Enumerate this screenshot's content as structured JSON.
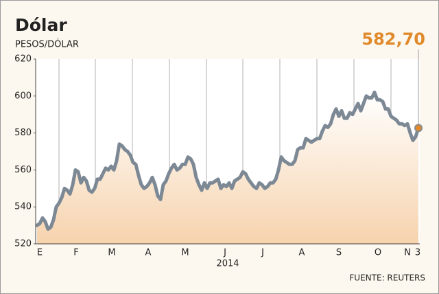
{
  "chart_data": {
    "type": "line",
    "title": "Dólar",
    "subtitle": "PESOS/DÓLAR",
    "xlabel": "2014",
    "source": "FUENTE: REUTERS",
    "annotation": "582,70",
    "color": "#7d8895",
    "marker_color": "#e08a2c",
    "values": [
      530,
      531,
      534,
      532,
      528,
      529,
      533,
      540,
      542,
      545,
      550,
      549,
      547,
      552,
      560,
      559,
      553,
      556,
      554,
      549,
      548,
      550,
      555,
      555,
      558,
      561,
      560,
      562,
      560,
      565,
      574,
      573,
      571,
      570,
      568,
      564,
      563,
      557,
      552,
      550,
      551,
      553,
      556,
      552,
      546,
      544,
      552,
      554,
      558,
      561,
      563,
      560,
      561,
      563,
      563,
      567,
      566,
      563,
      556,
      552,
      549,
      553,
      550,
      553,
      553,
      554,
      555,
      550,
      552,
      551,
      553,
      550,
      554,
      555,
      556,
      559,
      558,
      555,
      553,
      551,
      550,
      553,
      552,
      550,
      551,
      553,
      553,
      555,
      560,
      567,
      565,
      564,
      563,
      563,
      565,
      571,
      572,
      572,
      577,
      576,
      575,
      576,
      577,
      577,
      581,
      584,
      583,
      585,
      590,
      593,
      589,
      592,
      588,
      588,
      591,
      590,
      593,
      596,
      592,
      596,
      600,
      599,
      599,
      602,
      598,
      598,
      597,
      593,
      593,
      589,
      588,
      587,
      585,
      585,
      584,
      585,
      580,
      576,
      578,
      582.7
    ],
    "xlim": [
      -0.5,
      139.5
    ],
    "xticks": [
      {
        "value": 1,
        "label": "E"
      },
      {
        "value": 14.25,
        "label": "F"
      },
      {
        "value": 27.25,
        "label": "M"
      },
      {
        "value": 40.5,
        "label": "A"
      },
      {
        "value": 54,
        "label": "M"
      },
      {
        "value": 68.5,
        "label": "J"
      },
      {
        "value": 82.25,
        "label": "J"
      },
      {
        "value": 96.5,
        "label": "A"
      },
      {
        "value": 110,
        "label": "S"
      },
      {
        "value": 124.25,
        "label": "O"
      },
      {
        "value": 135,
        "label": "N"
      },
      {
        "value": 138.75,
        "label": "3"
      }
    ],
    "xgrid": [
      8,
      21.25,
      34.75,
      48.25,
      61.75,
      75,
      88.5,
      102,
      115.5,
      129
    ],
    "ylim": [
      520,
      620
    ],
    "yticks": [
      520,
      540,
      560,
      580,
      600,
      620
    ]
  }
}
